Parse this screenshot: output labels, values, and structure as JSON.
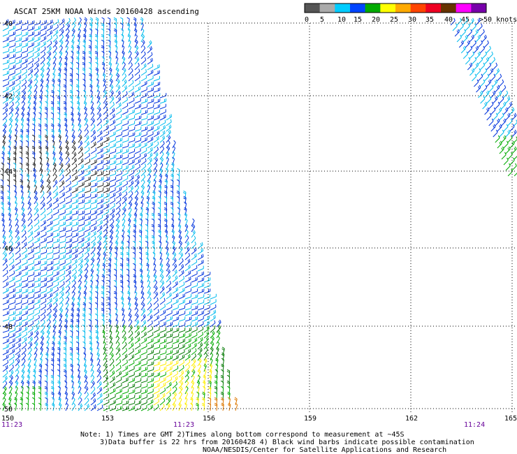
{
  "title": "ASCAT 25KM NOAA Winds 20160428 ascending",
  "legend": {
    "labels": [
      "0",
      "5",
      "10",
      "15",
      "20",
      "25",
      "30",
      "35",
      "40",
      "45",
      ">50 knots"
    ],
    "colors": [
      "#555555",
      "#aaaaaa",
      "#00ccff",
      "#0044ff",
      "#00aa00",
      "#ffff00",
      "#ffaa00",
      "#ff4400",
      "#ee0022",
      "#663300",
      "#ff00ff",
      "#7700aa"
    ]
  },
  "lat_labels": [
    "40",
    "42",
    "44",
    "46",
    "48",
    "50"
  ],
  "lon_labels": [
    "150",
    "153",
    "156",
    "159",
    "162",
    "165"
  ],
  "time_labels": [
    "11:23",
    "11:23",
    "11:24"
  ],
  "notes": [
    "Note: 1) Times are GMT 2)Times along bottom correspond to measurement at ~45S",
    "3)Data buffer is 22 hrs from 20160428 4) Black wind barbs indicate possible contamination",
    "NOAA/NESDIS/Center for Satellite Applications and Research"
  ]
}
